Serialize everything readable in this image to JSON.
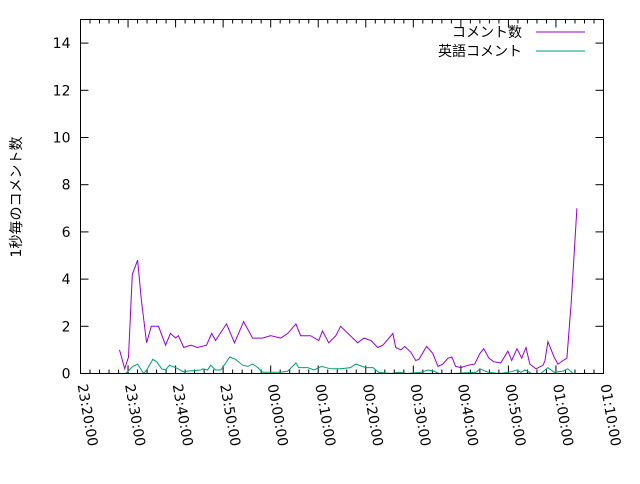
{
  "chart_data": {
    "type": "line",
    "title": "",
    "xlabel": "",
    "ylabel": "1秒毎のコメント数",
    "xlim": [
      "23:20:00",
      "01:10:00"
    ],
    "ylim": [
      0,
      15
    ],
    "x_ticks": [
      "23:20:00",
      "23:30:00",
      "23:40:00",
      "23:50:00",
      "00:00:00",
      "00:10:00",
      "00:20:00",
      "00:30:00",
      "00:40:00",
      "00:50:00",
      "01:00:00",
      "01:10:00"
    ],
    "y_ticks": [
      "0",
      "2",
      "4",
      "6",
      "8",
      "10",
      "12",
      "14"
    ],
    "grid": false,
    "legend_position": "top-right",
    "series": [
      {
        "name": "コメント数",
        "color": "#9400d3",
        "points": [
          [
            "23:28:12",
            1.0
          ],
          [
            "23:29:18",
            0.2
          ],
          [
            "23:30:06",
            0.7
          ],
          [
            "23:30:54",
            4.2
          ],
          [
            "23:32:00",
            4.8
          ],
          [
            "23:32:48",
            3.1
          ],
          [
            "23:33:54",
            1.3
          ],
          [
            "23:34:54",
            2.0
          ],
          [
            "23:36:24",
            2.0
          ],
          [
            "23:37:54",
            1.2
          ],
          [
            "23:38:54",
            1.7
          ],
          [
            "23:40:00",
            1.5
          ],
          [
            "23:40:36",
            1.6
          ],
          [
            "23:41:42",
            1.1
          ],
          [
            "23:43:12",
            1.2
          ],
          [
            "23:44:36",
            1.1
          ],
          [
            "23:46:30",
            1.2
          ],
          [
            "23:47:36",
            1.7
          ],
          [
            "23:48:24",
            1.4
          ],
          [
            "23:50:42",
            2.1
          ],
          [
            "23:52:24",
            1.3
          ],
          [
            "23:54:18",
            2.2
          ],
          [
            "23:56:12",
            1.5
          ],
          [
            "23:58:18",
            1.5
          ],
          [
            "00:00:00",
            1.6
          ],
          [
            "00:02:06",
            1.5
          ],
          [
            "00:03:36",
            1.7
          ],
          [
            "00:05:18",
            2.1
          ],
          [
            "00:06:18",
            1.6
          ],
          [
            "00:08:24",
            1.6
          ],
          [
            "00:10:06",
            1.4
          ],
          [
            "00:10:54",
            1.8
          ],
          [
            "00:12:12",
            1.3
          ],
          [
            "00:13:42",
            1.6
          ],
          [
            "00:14:42",
            2.0
          ],
          [
            "00:18:18",
            1.3
          ],
          [
            "00:19:36",
            1.5
          ],
          [
            "00:21:06",
            1.4
          ],
          [
            "00:22:30",
            1.1
          ],
          [
            "00:23:36",
            1.2
          ],
          [
            "00:25:42",
            1.7
          ],
          [
            "00:26:18",
            1.1
          ],
          [
            "00:27:24",
            1.0
          ],
          [
            "00:28:12",
            1.15
          ],
          [
            "00:29:30",
            0.9
          ],
          [
            "00:30:30",
            0.55
          ],
          [
            "00:31:12",
            0.6
          ],
          [
            "00:32:48",
            1.15
          ],
          [
            "00:34:06",
            0.85
          ],
          [
            "00:35:12",
            0.3
          ],
          [
            "00:36:12",
            0.4
          ],
          [
            "00:37:18",
            0.65
          ],
          [
            "00:38:06",
            0.7
          ],
          [
            "00:38:54",
            0.3
          ],
          [
            "00:40:00",
            0.25
          ],
          [
            "00:41:30",
            0.35
          ],
          [
            "00:42:54",
            0.4
          ],
          [
            "00:44:00",
            0.85
          ],
          [
            "00:44:48",
            1.05
          ],
          [
            "00:45:54",
            0.65
          ],
          [
            "00:46:54",
            0.5
          ],
          [
            "00:48:24",
            0.45
          ],
          [
            "00:49:54",
            0.95
          ],
          [
            "00:50:42",
            0.55
          ],
          [
            "00:51:48",
            1.05
          ],
          [
            "00:52:48",
            0.65
          ],
          [
            "00:53:42",
            1.1
          ],
          [
            "00:54:30",
            0.4
          ],
          [
            "00:55:48",
            0.2
          ],
          [
            "00:57:18",
            0.35
          ],
          [
            "00:57:42",
            0.55
          ],
          [
            "00:58:18",
            1.35
          ],
          [
            "00:59:36",
            0.7
          ],
          [
            "01:00:24",
            0.4
          ],
          [
            "01:01:30",
            0.55
          ],
          [
            "01:02:18",
            0.65
          ],
          [
            "01:03:12",
            3.0
          ],
          [
            "01:04:24",
            7.0
          ]
        ]
      },
      {
        "name": "英語コメント",
        "color": "#009e73",
        "points": [
          [
            "23:29:30",
            0.0
          ],
          [
            "23:31:00",
            0.3
          ],
          [
            "23:32:00",
            0.4
          ],
          [
            "23:33:18",
            0.0
          ],
          [
            "23:34:06",
            0.2
          ],
          [
            "23:35:12",
            0.6
          ],
          [
            "23:36:00",
            0.5
          ],
          [
            "23:37:06",
            0.2
          ],
          [
            "23:37:54",
            0.15
          ],
          [
            "23:38:42",
            0.35
          ],
          [
            "23:40:00",
            0.25
          ],
          [
            "23:41:54",
            0.05
          ],
          [
            "23:42:30",
            0.1
          ],
          [
            "23:45:18",
            0.15
          ],
          [
            "23:45:42",
            0.2
          ],
          [
            "23:46:42",
            0.15
          ],
          [
            "23:47:24",
            0.35
          ],
          [
            "23:48:24",
            0.15
          ],
          [
            "23:49:30",
            0.15
          ],
          [
            "23:51:24",
            0.7
          ],
          [
            "23:52:36",
            0.6
          ],
          [
            "23:54:06",
            0.35
          ],
          [
            "23:55:12",
            0.3
          ],
          [
            "23:56:12",
            0.4
          ],
          [
            "23:57:18",
            0.25
          ],
          [
            "23:58:18",
            0.05
          ],
          [
            "00:00:24",
            0.05
          ],
          [
            "00:02:06",
            0.05
          ],
          [
            "00:03:36",
            0.1
          ],
          [
            "00:05:18",
            0.45
          ],
          [
            "00:05:54",
            0.25
          ],
          [
            "00:07:48",
            0.25
          ],
          [
            "00:09:06",
            0.15
          ],
          [
            "00:10:42",
            0.3
          ],
          [
            "00:12:36",
            0.2
          ],
          [
            "00:14:42",
            0.2
          ],
          [
            "00:16:48",
            0.25
          ],
          [
            "00:17:54",
            0.4
          ],
          [
            "00:20:00",
            0.25
          ],
          [
            "00:21:30",
            0.25
          ],
          [
            "00:22:42",
            0.05
          ],
          [
            "00:25:18",
            0.0
          ],
          [
            "00:26:54",
            0.05
          ],
          [
            "00:28:48",
            0.0
          ],
          [
            "00:31:36",
            0.05
          ],
          [
            "00:33:06",
            0.15
          ],
          [
            "00:34:18",
            0.1
          ],
          [
            "00:35:24",
            0.0
          ],
          [
            "00:38:30",
            0.0
          ],
          [
            "00:43:12",
            0.05
          ],
          [
            "00:44:00",
            0.2
          ],
          [
            "00:45:42",
            0.05
          ],
          [
            "00:48:00",
            0.0
          ],
          [
            "00:50:06",
            0.05
          ],
          [
            "00:51:48",
            0.15
          ],
          [
            "00:52:36",
            0.05
          ],
          [
            "00:53:30",
            0.15
          ],
          [
            "00:54:54",
            0.0
          ],
          [
            "00:56:48",
            0.0
          ],
          [
            "00:58:18",
            0.25
          ],
          [
            "00:59:36",
            0.05
          ],
          [
            "01:01:30",
            0.1
          ],
          [
            "01:02:30",
            0.2
          ],
          [
            "01:03:36",
            0.0
          ]
        ]
      }
    ]
  }
}
